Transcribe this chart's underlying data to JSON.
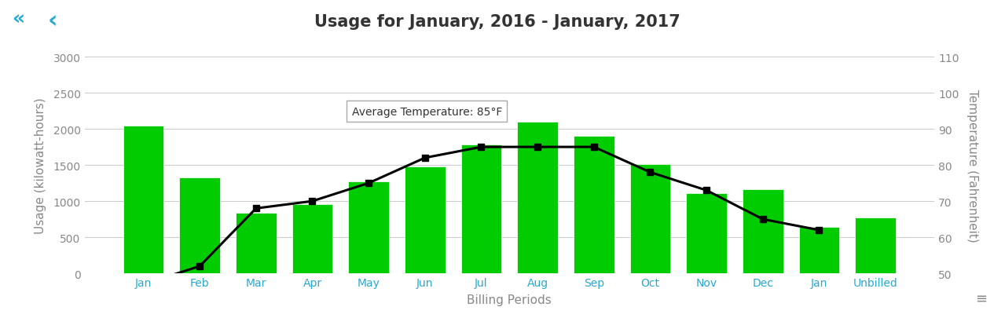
{
  "title": "Usage for January, 2016 - January, 2017",
  "xlabel": "Billing Periods",
  "ylabel_left": "Usage (kilowatt-hours)",
  "ylabel_right": "Temperature (Fahrenheit)",
  "categories": [
    "Jan",
    "Feb",
    "Mar",
    "Apr",
    "May",
    "Jun",
    "Jul",
    "Aug",
    "Sep",
    "Oct",
    "Nov",
    "Dec",
    "Jan",
    "Unbilled"
  ],
  "bar_values": [
    2050,
    1325,
    840,
    960,
    1270,
    1475,
    1780,
    2100,
    1900,
    1510,
    1110,
    1165,
    640,
    775
  ],
  "temp_values": [
    47,
    52,
    68,
    70,
    75,
    82,
    85,
    85,
    85,
    78,
    73,
    65,
    62,
    null
  ],
  "bar_color": "#00cc00",
  "bar_edge_color": "#ffffff",
  "line_color": "#000000",
  "marker_color": "#000000",
  "marker_size": 6,
  "ylim_left": [
    0,
    3000
  ],
  "ylim_right": [
    50,
    110
  ],
  "yticks_left": [
    0,
    500,
    1000,
    1500,
    2000,
    2500,
    3000
  ],
  "yticks_right": [
    50,
    60,
    70,
    80,
    90,
    100,
    110
  ],
  "grid_color": "#cccccc",
  "axis_label_color": "#888888",
  "tick_label_color": "#888888",
  "x_tick_color": "#29a8d0",
  "title_color": "#333333",
  "title_fontsize": 15,
  "label_fontsize": 11,
  "tick_fontsize": 10,
  "annotation_text": "Average Temperature: 85°F",
  "annotation_xi": 6,
  "annotation_yi": 85,
  "background_color": "#ffffff",
  "fig_width": 12.65,
  "fig_height": 4.06
}
